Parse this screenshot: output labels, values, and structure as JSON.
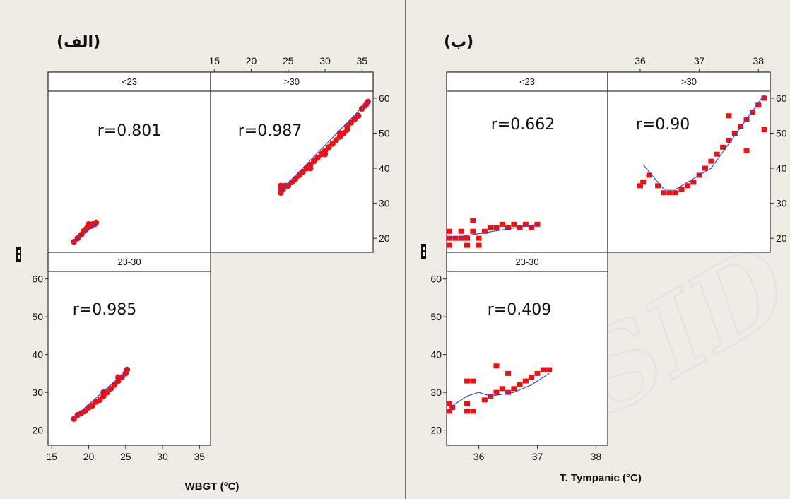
{
  "chart_data": [
    {
      "type": "scatter",
      "title": "(الف)",
      "xlabel": "WBGT (°C)",
      "ylabel": "",
      "xlim": [
        14.5,
        36.5
      ],
      "ylim": [
        16,
        62
      ],
      "xticks": [
        15,
        20,
        25,
        30,
        35
      ],
      "yticks": [
        20,
        30,
        40,
        50,
        60
      ],
      "panels": [
        {
          "strip": "<23",
          "r_label": "r=0.801",
          "points": [
            [
              18,
              19
            ],
            [
              18.5,
              20
            ],
            [
              19,
              21
            ],
            [
              19.3,
              22
            ],
            [
              19.6,
              22.5
            ],
            [
              19.8,
              23
            ],
            [
              20,
              24
            ],
            [
              20.3,
              23.5
            ],
            [
              20.5,
              24
            ],
            [
              20.8,
              24
            ],
            [
              21,
              24.5
            ]
          ],
          "fit": [
            [
              17.8,
              18.8
            ],
            [
              21.2,
              24.6
            ]
          ]
        },
        {
          "strip": ">30",
          "r_label": "r=0.987",
          "points": [
            [
              24,
              33
            ],
            [
              24,
              34
            ],
            [
              24,
              35
            ],
            [
              24.3,
              34
            ],
            [
              24.6,
              35
            ],
            [
              25,
              35
            ],
            [
              25.5,
              36
            ],
            [
              26,
              37
            ],
            [
              26.5,
              38
            ],
            [
              27,
              39
            ],
            [
              27.5,
              40
            ],
            [
              28,
              41
            ],
            [
              28.5,
              42
            ],
            [
              29,
              43
            ],
            [
              29.5,
              44
            ],
            [
              30,
              45
            ],
            [
              30.5,
              46
            ],
            [
              31,
              47
            ],
            [
              31.5,
              48
            ],
            [
              32,
              49
            ],
            [
              32.5,
              50
            ],
            [
              33,
              51
            ],
            [
              33.5,
              53
            ],
            [
              34,
              54
            ],
            [
              34.5,
              55
            ],
            [
              35,
              57
            ],
            [
              35.5,
              58
            ],
            [
              35.8,
              59
            ],
            [
              32,
              50
            ],
            [
              33,
              52
            ],
            [
              30,
              44
            ],
            [
              28,
              40
            ]
          ],
          "fit": [
            [
              23.8,
              33.2
            ],
            [
              36,
              59.5
            ]
          ]
        },
        {
          "strip": "23-30",
          "r_label": "r=0.985",
          "points": [
            [
              18,
              23
            ],
            [
              18.5,
              24
            ],
            [
              19,
              24.5
            ],
            [
              19.5,
              25
            ],
            [
              20,
              26
            ],
            [
              20.5,
              26.5
            ],
            [
              21,
              27.5
            ],
            [
              21.5,
              28
            ],
            [
              22,
              29
            ],
            [
              22.5,
              30
            ],
            [
              23,
              31
            ],
            [
              23.5,
              32
            ],
            [
              24,
              33
            ],
            [
              24.5,
              34
            ],
            [
              25,
              35
            ],
            [
              25.2,
              36
            ],
            [
              22,
              30
            ],
            [
              24,
              34
            ]
          ],
          "fit": [
            [
              17.8,
              23
            ],
            [
              25.3,
              36
            ]
          ]
        }
      ]
    },
    {
      "type": "scatter",
      "title": "(ب)",
      "xlabel": "T. Tympanic (°C)",
      "ylabel": "",
      "xlim": [
        35.45,
        38.2
      ],
      "ylim": [
        16,
        62
      ],
      "xticks": [
        36,
        37,
        38
      ],
      "yticks": [
        20,
        30,
        40,
        50,
        60
      ],
      "panels": [
        {
          "strip": "<23",
          "r_label": "r=0.662",
          "points": [
            [
              35.5,
              18
            ],
            [
              35.5,
              20
            ],
            [
              35.5,
              22
            ],
            [
              35.6,
              20
            ],
            [
              35.7,
              20
            ],
            [
              35.7,
              22
            ],
            [
              35.8,
              18
            ],
            [
              35.8,
              20
            ],
            [
              35.9,
              22
            ],
            [
              35.9,
              25
            ],
            [
              36.0,
              18
            ],
            [
              36.0,
              20
            ],
            [
              36.1,
              22
            ],
            [
              36.2,
              23
            ],
            [
              36.3,
              23
            ],
            [
              36.4,
              24
            ],
            [
              36.5,
              23
            ],
            [
              36.6,
              24
            ],
            [
              36.7,
              23
            ],
            [
              36.8,
              24
            ],
            [
              36.9,
              23
            ],
            [
              37.0,
              24
            ]
          ],
          "fit": [
            [
              35.5,
              20
            ],
            [
              37.0,
              24
            ]
          ]
        },
        {
          "strip": ">30",
          "r_label": "r=0.90",
          "points": [
            [
              36.0,
              35
            ],
            [
              36.05,
              36
            ],
            [
              36.15,
              38
            ],
            [
              36.3,
              35
            ],
            [
              36.4,
              33
            ],
            [
              36.5,
              33
            ],
            [
              36.6,
              33
            ],
            [
              36.7,
              34
            ],
            [
              36.8,
              35
            ],
            [
              36.9,
              36
            ],
            [
              37.0,
              38
            ],
            [
              37.1,
              40
            ],
            [
              37.2,
              42
            ],
            [
              37.3,
              44
            ],
            [
              37.4,
              46
            ],
            [
              37.5,
              48
            ],
            [
              37.6,
              50
            ],
            [
              37.7,
              52
            ],
            [
              37.8,
              54
            ],
            [
              37.9,
              56
            ],
            [
              38.0,
              58
            ],
            [
              38.1,
              60
            ],
            [
              37.8,
              45
            ],
            [
              38.1,
              51
            ],
            [
              37.5,
              55
            ]
          ],
          "fit": [
            [
              36.05,
              41
            ],
            [
              36.4,
              34
            ],
            [
              36.6,
              34
            ],
            [
              37.2,
              40
            ],
            [
              38.1,
              61
            ]
          ]
        },
        {
          "strip": "23-30",
          "r_label": "r=0.409",
          "points": [
            [
              35.5,
              25
            ],
            [
              35.5,
              27
            ],
            [
              35.55,
              26
            ],
            [
              35.8,
              25
            ],
            [
              35.8,
              27
            ],
            [
              35.9,
              25
            ],
            [
              35.8,
              33
            ],
            [
              35.9,
              33
            ],
            [
              36.1,
              28
            ],
            [
              36.2,
              29
            ],
            [
              36.3,
              30
            ],
            [
              36.4,
              31
            ],
            [
              36.5,
              30
            ],
            [
              36.6,
              31
            ],
            [
              36.7,
              32
            ],
            [
              36.8,
              33
            ],
            [
              36.9,
              34
            ],
            [
              37.0,
              35
            ],
            [
              37.1,
              36
            ],
            [
              37.2,
              36
            ],
            [
              36.3,
              37
            ],
            [
              36.5,
              35
            ]
          ],
          "fit": [
            [
              35.5,
              26
            ],
            [
              35.8,
              29
            ],
            [
              36.0,
              30
            ],
            [
              36.2,
              29
            ],
            [
              36.6,
              30
            ],
            [
              36.9,
              32
            ],
            [
              37.2,
              35
            ]
          ]
        }
      ]
    }
  ]
}
